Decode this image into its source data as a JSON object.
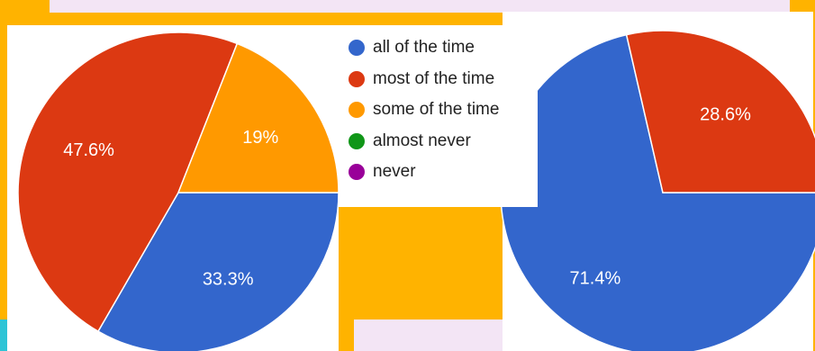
{
  "legend": [
    {
      "label": "all of the time",
      "color": "#3366cc"
    },
    {
      "label": "most of the time",
      "color": "#dc3912"
    },
    {
      "label": "some of the time",
      "color": "#ff9900"
    },
    {
      "label": "almost never",
      "color": "#109618"
    },
    {
      "label": "never",
      "color": "#990099"
    }
  ],
  "chart_data": [
    {
      "type": "pie",
      "categories": [
        "all of the time",
        "most of the time",
        "some of the time",
        "almost never",
        "never"
      ],
      "values": [
        33.3,
        47.6,
        19,
        0,
        0
      ],
      "labels": [
        "33.3%",
        "47.6%",
        "19%",
        "",
        ""
      ],
      "colors": [
        "#3366cc",
        "#dc3912",
        "#ff9900",
        "#109618",
        "#990099"
      ]
    },
    {
      "type": "pie",
      "categories": [
        "all of the time",
        "most of the time",
        "some of the time",
        "almost never",
        "never"
      ],
      "values": [
        71.4,
        28.6,
        0,
        0,
        0
      ],
      "labels": [
        "71.4%",
        "28.6%",
        "",
        "",
        ""
      ],
      "colors": [
        "#3366cc",
        "#dc3912",
        "#ff9900",
        "#109618",
        "#990099"
      ]
    }
  ]
}
